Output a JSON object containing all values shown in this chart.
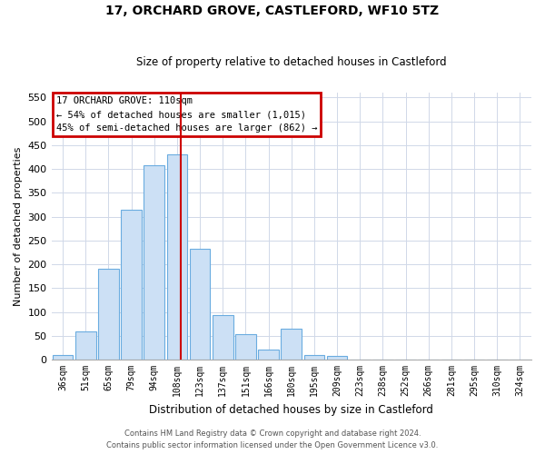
{
  "title": "17, ORCHARD GROVE, CASTLEFORD, WF10 5TZ",
  "subtitle": "Size of property relative to detached houses in Castleford",
  "xlabel": "Distribution of detached houses by size in Castleford",
  "ylabel": "Number of detached properties",
  "categories": [
    "36sqm",
    "51sqm",
    "65sqm",
    "79sqm",
    "94sqm",
    "108sqm",
    "123sqm",
    "137sqm",
    "151sqm",
    "166sqm",
    "180sqm",
    "195sqm",
    "209sqm",
    "223sqm",
    "238sqm",
    "252sqm",
    "266sqm",
    "281sqm",
    "295sqm",
    "310sqm",
    "324sqm"
  ],
  "values": [
    10,
    60,
    190,
    315,
    408,
    430,
    233,
    93,
    53,
    22,
    65,
    10,
    8,
    0,
    0,
    0,
    0,
    0,
    0,
    0,
    0
  ],
  "bar_color": "#cce0f5",
  "bar_edge_color": "#6aace0",
  "annotation_text": "17 ORCHARD GROVE: 110sqm\n← 54% of detached houses are smaller (1,015)\n45% of semi-detached houses are larger (862) →",
  "annotation_box_color": "#cc0000",
  "red_line_x": 5.15,
  "footer1": "Contains HM Land Registry data © Crown copyright and database right 2024.",
  "footer2": "Contains public sector information licensed under the Open Government Licence v3.0.",
  "ylim": [
    0,
    560
  ],
  "yticks": [
    0,
    50,
    100,
    150,
    200,
    250,
    300,
    350,
    400,
    450,
    500,
    550
  ]
}
